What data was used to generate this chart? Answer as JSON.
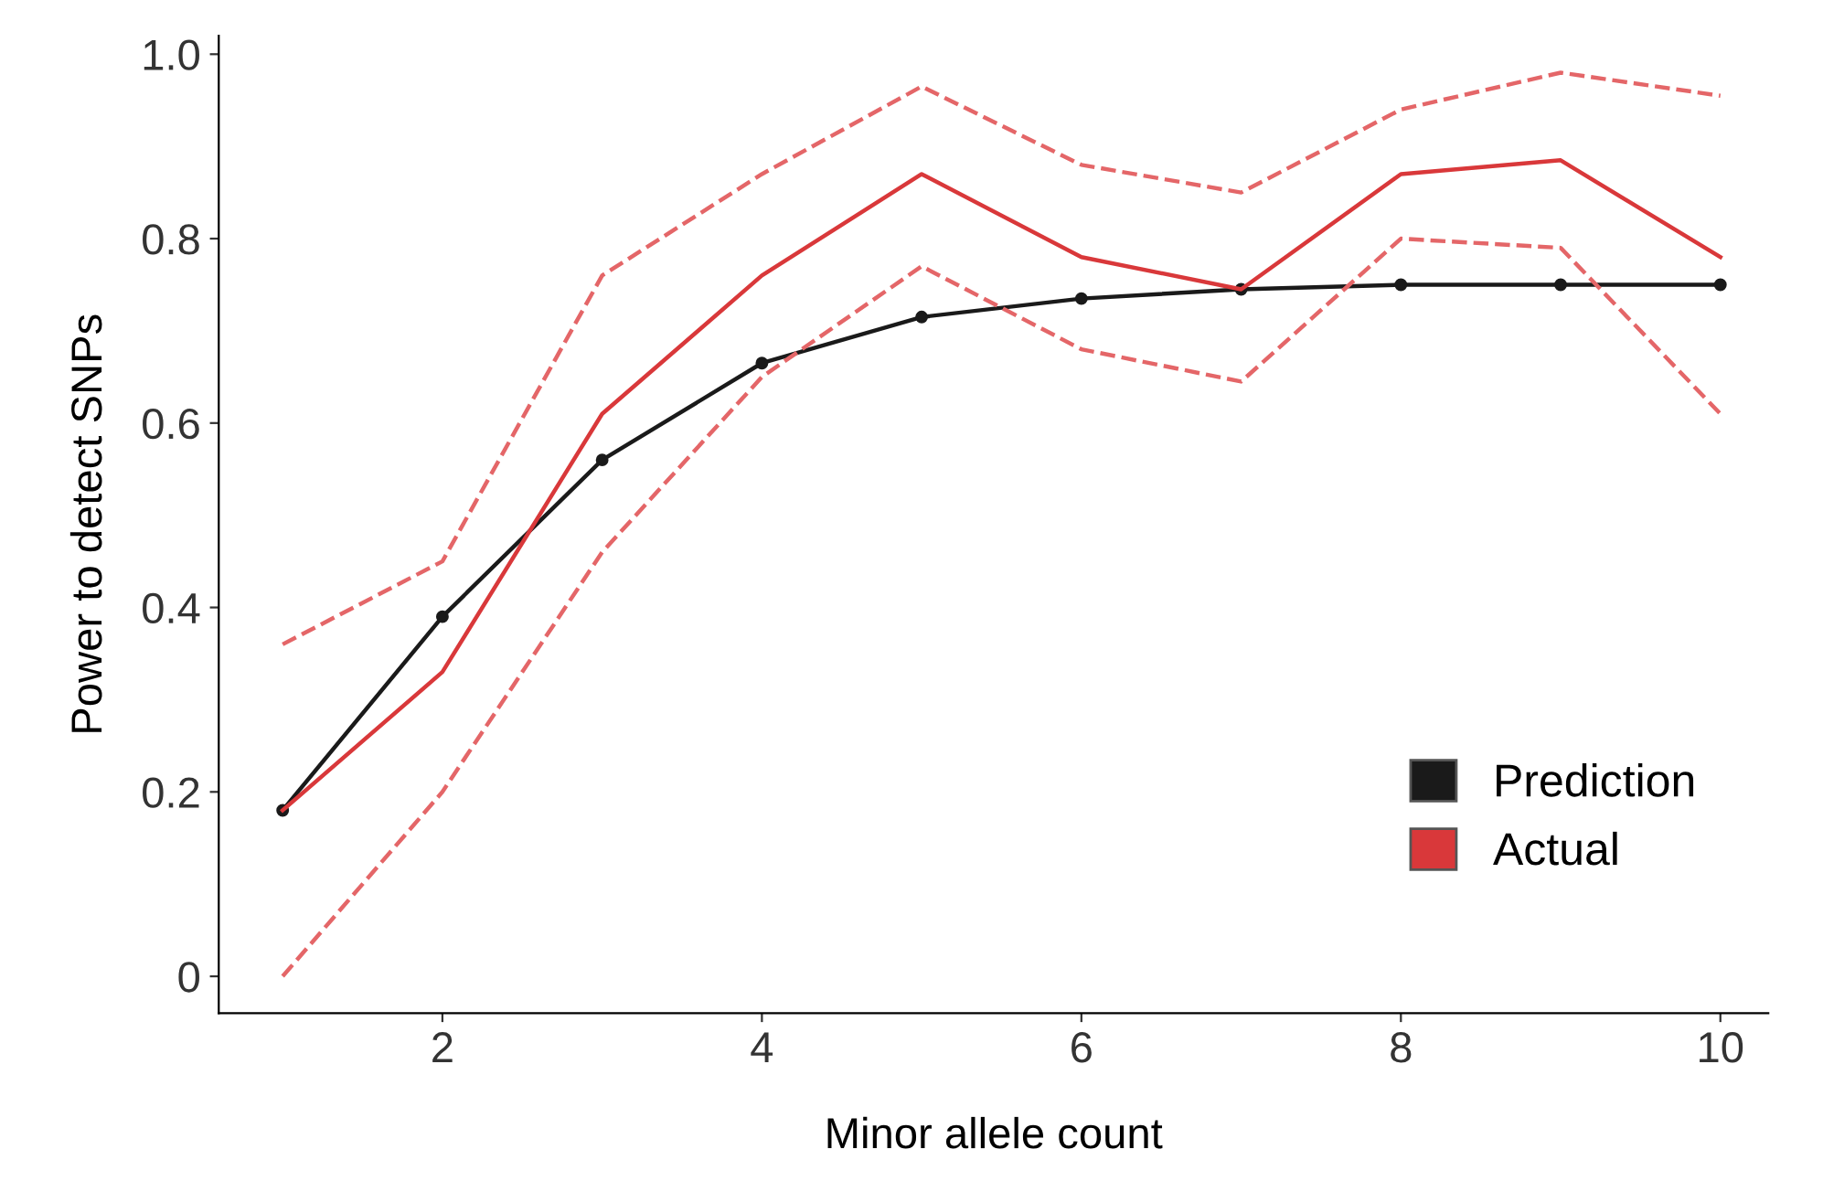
{
  "chart_data": {
    "type": "line",
    "xlabel": "Minor allele count",
    "ylabel": "Power to detect SNPs",
    "x": [
      1,
      2,
      3,
      4,
      5,
      6,
      7,
      8,
      9,
      10
    ],
    "series": [
      {
        "name": "Prediction",
        "color": "#1a1a1a",
        "marker": "circle",
        "values": [
          0.18,
          0.39,
          0.56,
          0.665,
          0.715,
          0.735,
          0.745,
          0.75,
          0.75,
          0.75
        ]
      },
      {
        "name": "Actual",
        "color": "#d9383a",
        "marker": "none",
        "values": [
          0.18,
          0.33,
          0.61,
          0.76,
          0.87,
          0.78,
          0.745,
          0.87,
          0.885,
          0.78
        ]
      },
      {
        "color": "#e46668",
        "marker": "none",
        "line_style": "dashed",
        "values": [
          0.0,
          0.2,
          0.46,
          0.65,
          0.77,
          0.68,
          0.645,
          0.8,
          0.79,
          0.61
        ]
      },
      {
        "color": "#e46668",
        "marker": "none",
        "line_style": "dashed",
        "values": [
          0.36,
          0.45,
          0.76,
          0.87,
          0.965,
          0.88,
          0.85,
          0.94,
          0.98,
          0.955
        ]
      }
    ],
    "xlim": [
      0.6,
      10.3
    ],
    "ylim": [
      -0.04,
      1.02
    ],
    "xticks": [
      2,
      4,
      6,
      8,
      10
    ],
    "yticks": [
      0,
      0.2,
      0.4,
      0.6,
      0.8,
      {
        "value": 1.0,
        "label": "1.0"
      }
    ],
    "legend": "bottom right",
    "grid": false
  }
}
